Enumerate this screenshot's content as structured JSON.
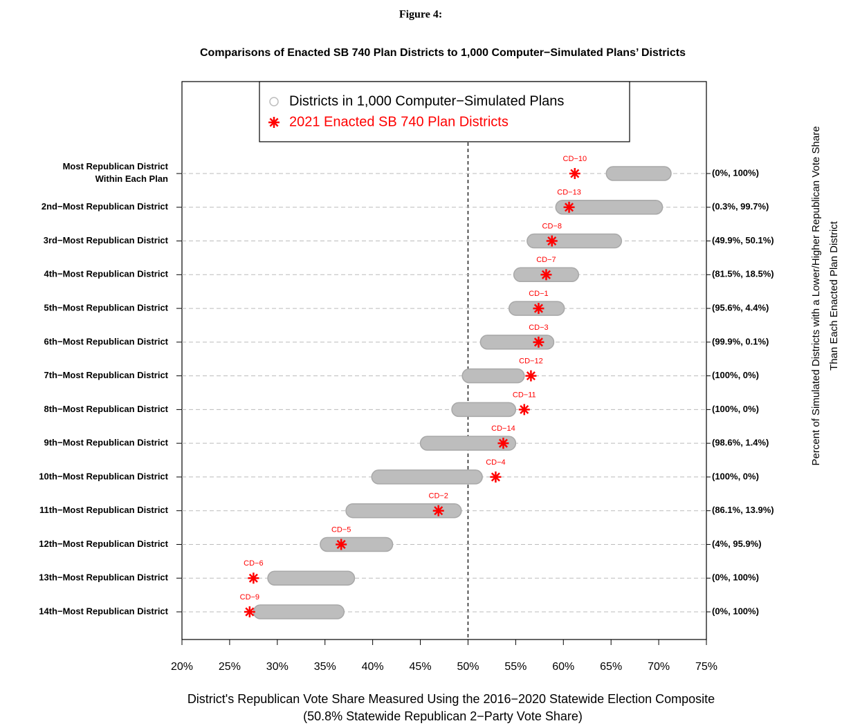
{
  "chart_data": {
    "type": "strip",
    "figure_label": "Figure 4:",
    "title": "Comparisons of Enacted SB 740 Plan Districts to 1,000 Computer−Simulated Plans’ Districts",
    "xlabel": [
      "District's Republican Vote Share Measured Using the 2016−2020 Statewide Election Composite",
      "(50.8% Statewide Republican 2−Party Vote Share)"
    ],
    "ylabel_right": [
      "Percent of Simulated Districts with a Lower/Higher Republican Vote Share",
      "Than Each Enacted Plan District"
    ],
    "categories": [
      "Most Republican District\nWithin Each Plan",
      "2nd−Most Republican District",
      "3rd−Most Republican District",
      "4th−Most Republican District",
      "5th−Most Republican District",
      "6th−Most Republican District",
      "7th−Most Republican District",
      "8th−Most Republican District",
      "9th−Most Republican District",
      "10th−Most Republican District",
      "11th−Most Republican District",
      "12th−Most Republican District",
      "13th−Most Republican District",
      "14th−Most Republican District"
    ],
    "right_labels": [
      "(0%, 100%)",
      "(0.3%, 99.7%)",
      "(49.9%, 50.1%)",
      "(81.5%, 18.5%)",
      "(95.6%, 4.4%)",
      "(99.9%, 0.1%)",
      "(100%, 0%)",
      "(100%, 0%)",
      "(98.6%, 1.4%)",
      "(100%, 0%)",
      "(86.1%, 13.9%)",
      "(4%, 95.9%)",
      "(0%, 100%)",
      "(0%, 100%)"
    ],
    "series": [
      {
        "name": "Districts in 1,000 Computer−Simulated Plans",
        "color": "#bdbdbd",
        "ranges": [
          [
            64.5,
            71.3
          ],
          [
            59.2,
            70.4
          ],
          [
            56.2,
            66.1
          ],
          [
            54.8,
            61.6
          ],
          [
            54.3,
            60.1
          ],
          [
            51.3,
            59.0
          ],
          [
            49.4,
            55.9
          ],
          [
            48.3,
            55.0
          ],
          [
            45.0,
            55.0
          ],
          [
            39.9,
            51.5
          ],
          [
            37.2,
            49.3
          ],
          [
            34.5,
            42.1
          ],
          [
            29.0,
            38.1
          ],
          [
            27.5,
            37.0
          ]
        ]
      },
      {
        "name": "2021 Enacted SB 740 Plan Districts",
        "color": "#ff0000",
        "values": [
          61.2,
          60.6,
          58.8,
          58.2,
          57.4,
          57.4,
          56.6,
          55.9,
          53.7,
          52.9,
          46.9,
          36.7,
          27.5,
          27.1
        ],
        "point_labels": [
          "CD−10",
          "CD−13",
          "CD−8",
          "CD−7",
          "CD−1",
          "CD−3",
          "CD−12",
          "CD−11",
          "CD−14",
          "CD−4",
          "CD−2",
          "CD−5",
          "CD−6",
          "CD−9"
        ]
      }
    ],
    "reference_line": 50,
    "xlim": [
      20,
      75
    ],
    "xticks": [
      {
        "value": 20,
        "label": "20%"
      },
      {
        "value": 25,
        "label": "25%"
      },
      {
        "value": 30,
        "label": "30%"
      },
      {
        "value": 35,
        "label": "35%"
      },
      {
        "value": 40,
        "label": "40%"
      },
      {
        "value": 45,
        "label": "45%"
      },
      {
        "value": 50,
        "label": "50%"
      },
      {
        "value": 55,
        "label": "55%"
      },
      {
        "value": 60,
        "label": "60%"
      },
      {
        "value": 65,
        "label": "65%"
      },
      {
        "value": 70,
        "label": "70%"
      },
      {
        "value": 75,
        "label": "75%"
      }
    ],
    "grid": true
  }
}
